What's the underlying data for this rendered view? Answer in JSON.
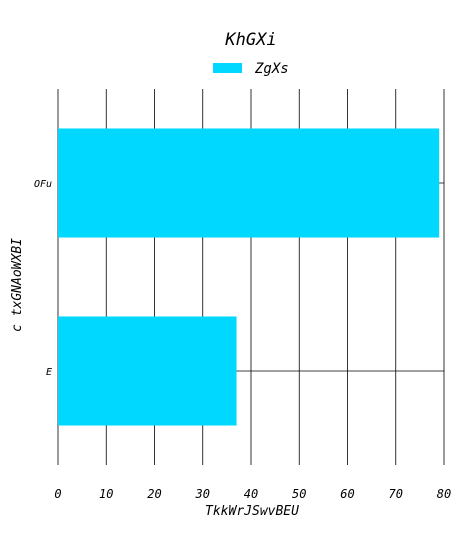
{
  "chart_data": {
    "type": "bar",
    "orientation": "horizontal",
    "title": "KhGXi",
    "xlabel": "TkkWrJSwvBEU",
    "ylabel": "c txGNAoWXBI",
    "categories": [
      "OFu",
      "E"
    ],
    "series": [
      {
        "name": "ZgXs",
        "values": [
          79,
          37
        ],
        "color": "#00d8ff"
      }
    ],
    "xlim": [
      0,
      80
    ],
    "xticks": [
      "0",
      "10",
      "20",
      "30",
      "40",
      "50",
      "60",
      "70",
      "80"
    ],
    "grid": true,
    "legend_position": "top-center"
  }
}
